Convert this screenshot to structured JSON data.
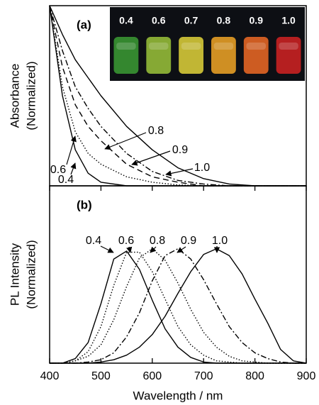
{
  "chart_data": [
    {
      "type": "line",
      "title": "(a)",
      "ylabel": [
        "Absorbance",
        "(Normalized)"
      ],
      "x": [
        400,
        425,
        450,
        475,
        500,
        550,
        600,
        650,
        700,
        750,
        800,
        850,
        900
      ],
      "xlim": [
        400,
        900
      ],
      "ylim": [
        0,
        1
      ],
      "series": [
        {
          "name": "0.4",
          "color": "#000000",
          "style": "solid",
          "values": [
            1,
            0.5,
            0.2,
            0.07,
            0.02,
            0,
            0,
            0,
            0,
            0,
            0,
            0,
            0
          ]
        },
        {
          "name": "0.6",
          "color": "#000000",
          "style": "dotted",
          "values": [
            1,
            0.55,
            0.3,
            0.18,
            0.12,
            0.05,
            0.02,
            0.005,
            0,
            0,
            0,
            0,
            0
          ]
        },
        {
          "name": "0.8",
          "color": "#000000",
          "style": "dashed",
          "values": [
            1,
            0.66,
            0.45,
            0.33,
            0.25,
            0.12,
            0.05,
            0.02,
            0,
            0,
            0,
            0,
            0
          ]
        },
        {
          "name": "0.9",
          "color": "#000000",
          "style": "dashdot",
          "values": [
            1,
            0.75,
            0.55,
            0.43,
            0.33,
            0.18,
            0.08,
            0.03,
            0.01,
            0,
            0,
            0,
            0
          ]
        },
        {
          "name": "1.0",
          "color": "#000000",
          "style": "solid",
          "values": [
            1,
            0.84,
            0.7,
            0.6,
            0.5,
            0.33,
            0.2,
            0.1,
            0.04,
            0.01,
            0,
            0,
            0
          ]
        }
      ],
      "inset": {
        "labels": [
          "0.4",
          "0.6",
          "0.7",
          "0.8",
          "0.9",
          "1.0"
        ],
        "colors": [
          "#3c9c34",
          "#9cc43a",
          "#e2d43a",
          "#f2a626",
          "#f06a24",
          "#d42222"
        ]
      }
    },
    {
      "type": "line",
      "title": "(b)",
      "ylabel": [
        "PL Intensity",
        "(Normalized)"
      ],
      "xlabel": "Wavelength / nm",
      "x": [
        400,
        425,
        450,
        475,
        500,
        525,
        550,
        575,
        600,
        625,
        650,
        675,
        700,
        725,
        750,
        775,
        800,
        825,
        850,
        875,
        900
      ],
      "xlim": [
        400,
        900
      ],
      "ylim": [
        0,
        1.55
      ],
      "xticks": [
        400,
        500,
        600,
        700,
        800,
        900
      ],
      "series": [
        {
          "name": "0.4",
          "color": "#000000",
          "style": "solid",
          "values": [
            0,
            0,
            0.04,
            0.18,
            0.52,
            0.91,
            0.98,
            0.82,
            0.55,
            0.3,
            0.14,
            0.05,
            0.01,
            0,
            0,
            0,
            0,
            0,
            0,
            0,
            0
          ]
        },
        {
          "name": "0.6",
          "color": "#000000",
          "style": "dotted",
          "values": [
            0,
            0,
            0.02,
            0.1,
            0.32,
            0.68,
            0.97,
            0.97,
            0.8,
            0.56,
            0.32,
            0.16,
            0.07,
            0.02,
            0.01,
            0,
            0,
            0,
            0,
            0,
            0
          ]
        },
        {
          "name": "0.8",
          "color": "#000000",
          "style": "dotted",
          "values": [
            0,
            0,
            0.02,
            0.06,
            0.16,
            0.38,
            0.67,
            0.92,
            1,
            0.9,
            0.7,
            0.47,
            0.27,
            0.14,
            0.06,
            0.02,
            0.01,
            0,
            0,
            0,
            0
          ]
        },
        {
          "name": "0.9",
          "color": "#000000",
          "style": "dashdot",
          "values": [
            0,
            0,
            0,
            0.01,
            0.03,
            0.09,
            0.23,
            0.44,
            0.72,
            0.94,
            1,
            0.91,
            0.73,
            0.52,
            0.32,
            0.18,
            0.09,
            0.04,
            0.01,
            0,
            0
          ]
        },
        {
          "name": "1.0",
          "color": "#000000",
          "style": "solid",
          "values": [
            0,
            0,
            0,
            0,
            0.01,
            0.03,
            0.07,
            0.14,
            0.25,
            0.41,
            0.61,
            0.8,
            0.95,
            1,
            0.94,
            0.78,
            0.56,
            0.35,
            0.12,
            0.02,
            0
          ]
        }
      ]
    }
  ]
}
